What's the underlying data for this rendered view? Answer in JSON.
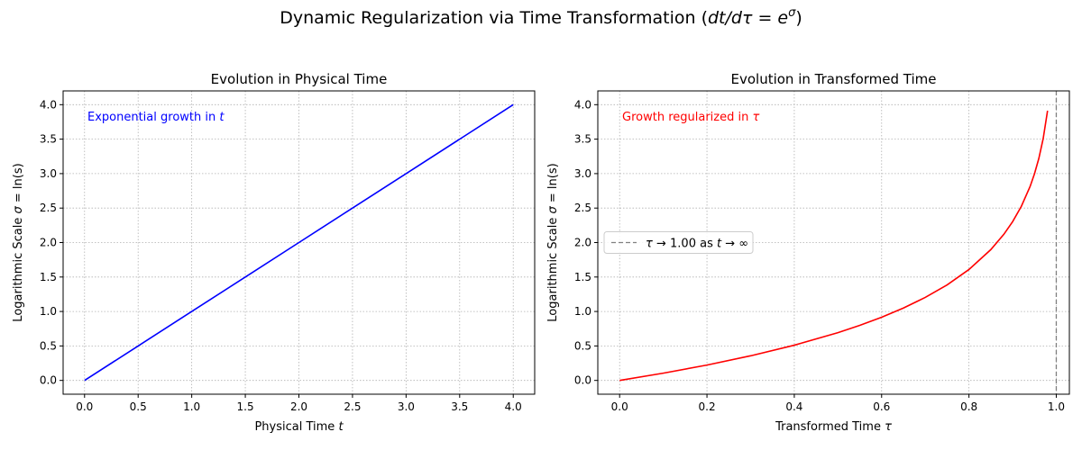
{
  "figure": {
    "suptitle": "Dynamic Regularization via Time Transformation (dt/dτ = e^σ)"
  },
  "chart_data": [
    {
      "type": "line",
      "title": "Evolution in Physical Time",
      "xlabel": "Physical Time t",
      "ylabel": "Logarithmic Scale σ = ln(s)",
      "xlim": [
        -0.2,
        4.2
      ],
      "ylim": [
        -0.2,
        4.2
      ],
      "xticks": [
        0.0,
        0.5,
        1.0,
        1.5,
        2.0,
        2.5,
        3.0,
        3.5,
        4.0
      ],
      "xtick_labels": [
        "0.0",
        "0.5",
        "1.0",
        "1.5",
        "2.0",
        "2.5",
        "3.0",
        "3.5",
        "4.0"
      ],
      "yticks": [
        0.0,
        0.5,
        1.0,
        1.5,
        2.0,
        2.5,
        3.0,
        3.5,
        4.0
      ],
      "ytick_labels": [
        "0.0",
        "0.5",
        "1.0",
        "1.5",
        "2.0",
        "2.5",
        "3.0",
        "3.5",
        "4.0"
      ],
      "grid": true,
      "annotation": "Exponential growth in t",
      "annotation_color": "#0000ff",
      "series": [
        {
          "color": "#0000ff",
          "x": [
            0.0,
            0.5,
            1.0,
            1.5,
            2.0,
            2.5,
            3.0,
            3.5,
            4.0
          ],
          "y": [
            0.0,
            0.5,
            1.0,
            1.5,
            2.0,
            2.5,
            3.0,
            3.5,
            4.0
          ]
        }
      ],
      "legend": null
    },
    {
      "type": "line",
      "title": "Evolution in Transformed Time",
      "xlabel": "Transformed Time τ",
      "ylabel": "Logarithmic Scale σ = ln(s)",
      "xlim": [
        -0.05,
        1.03
      ],
      "ylim": [
        -0.2,
        4.2
      ],
      "xticks": [
        0.0,
        0.2,
        0.4,
        0.6,
        0.8,
        1.0
      ],
      "xtick_labels": [
        "0.0",
        "0.2",
        "0.4",
        "0.6",
        "0.8",
        "1.0"
      ],
      "yticks": [
        0.0,
        0.5,
        1.0,
        1.5,
        2.0,
        2.5,
        3.0,
        3.5,
        4.0
      ],
      "ytick_labels": [
        "0.0",
        "0.5",
        "1.0",
        "1.5",
        "2.0",
        "2.5",
        "3.0",
        "3.5",
        "4.0"
      ],
      "grid": true,
      "annotation": "Growth regularized in τ",
      "annotation_color": "#ff0000",
      "series": [
        {
          "color": "#ff0000",
          "x": [
            0.0,
            0.1,
            0.2,
            0.3,
            0.4,
            0.5,
            0.55,
            0.6,
            0.65,
            0.7,
            0.75,
            0.8,
            0.85,
            0.88,
            0.9,
            0.92,
            0.94,
            0.95,
            0.96,
            0.97,
            0.98
          ],
          "y": [
            0.0,
            0.105,
            0.223,
            0.357,
            0.511,
            0.693,
            0.799,
            0.916,
            1.05,
            1.204,
            1.386,
            1.609,
            1.897,
            2.12,
            2.303,
            2.526,
            2.813,
            2.996,
            3.219,
            3.507,
            3.912
          ]
        }
      ],
      "vline": {
        "x": 1.0,
        "color": "#808080",
        "style": "dashed"
      },
      "legend": {
        "placement": "center-left",
        "entries": [
          {
            "label": "τ → 1.00 as t → ∞",
            "color": "#808080",
            "style": "dashed"
          }
        ]
      }
    }
  ]
}
